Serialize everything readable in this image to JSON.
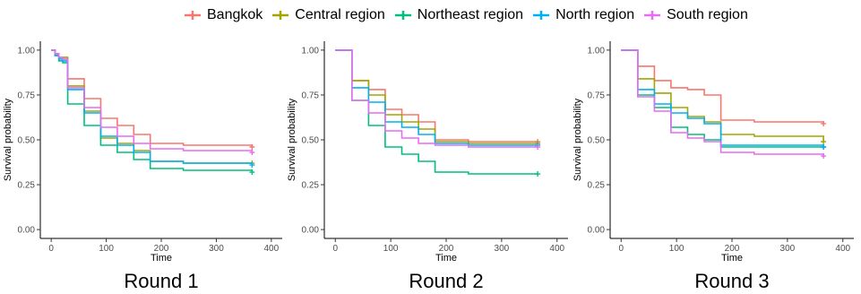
{
  "colors": {
    "Bangkok": "#F8766D",
    "Central region": "#A3A500",
    "Northeast region": "#00BF7D",
    "North region": "#00B0F6",
    "South region": "#E76BF3"
  },
  "legend": [
    "Bangkok",
    "Central region",
    "Northeast region",
    "North region",
    "South region"
  ],
  "chart_data": [
    {
      "type": "line",
      "subtype": "step",
      "caption": "Round 1",
      "xlabel": "Time",
      "ylabel": "Survival probability",
      "xlim": [
        0,
        400
      ],
      "ylim": [
        0,
        1
      ],
      "xticks": [
        "0",
        "100",
        "200",
        "300",
        "400"
      ],
      "yticks": [
        "0.00",
        "0.25",
        "0.50",
        "0.75",
        "1.00"
      ],
      "grid": false,
      "legend_position": "top",
      "series": [
        {
          "name": "Bangkok",
          "x": [
            0,
            7,
            14,
            21,
            30,
            60,
            90,
            120,
            150,
            180,
            240,
            365
          ],
          "y": [
            1.0,
            0.98,
            0.96,
            0.95,
            0.84,
            0.73,
            0.62,
            0.58,
            0.53,
            0.48,
            0.47,
            0.46
          ]
        },
        {
          "name": "Central region",
          "x": [
            0,
            7,
            14,
            21,
            30,
            60,
            90,
            120,
            150,
            180,
            240,
            365
          ],
          "y": [
            1.0,
            0.98,
            0.96,
            0.96,
            0.8,
            0.66,
            0.51,
            0.48,
            0.44,
            0.38,
            0.37,
            0.37
          ]
        },
        {
          "name": "Northeast region",
          "x": [
            0,
            7,
            14,
            21,
            30,
            60,
            90,
            120,
            150,
            180,
            240,
            365
          ],
          "y": [
            1.0,
            0.97,
            0.94,
            0.93,
            0.7,
            0.58,
            0.47,
            0.43,
            0.39,
            0.34,
            0.33,
            0.32
          ]
        },
        {
          "name": "North region",
          "x": [
            0,
            7,
            14,
            21,
            30,
            60,
            90,
            120,
            150,
            180,
            240,
            365
          ],
          "y": [
            1.0,
            0.97,
            0.95,
            0.94,
            0.78,
            0.65,
            0.52,
            0.47,
            0.43,
            0.38,
            0.37,
            0.36
          ]
        },
        {
          "name": "South region",
          "x": [
            0,
            7,
            14,
            21,
            30,
            60,
            90,
            120,
            150,
            180,
            240,
            365
          ],
          "y": [
            1.0,
            0.98,
            0.96,
            0.95,
            0.79,
            0.68,
            0.57,
            0.52,
            0.48,
            0.45,
            0.44,
            0.43
          ]
        }
      ]
    },
    {
      "type": "line",
      "subtype": "step",
      "caption": "Round 2",
      "xlabel": "Time",
      "ylabel": "Survival probability",
      "xlim": [
        0,
        400
      ],
      "ylim": [
        0,
        1
      ],
      "xticks": [
        "0",
        "100",
        "200",
        "300",
        "400"
      ],
      "yticks": [
        "0.00",
        "0.25",
        "0.50",
        "0.75",
        "1.00"
      ],
      "grid": false,
      "legend_position": "top",
      "series": [
        {
          "name": "Bangkok",
          "x": [
            0,
            30,
            60,
            90,
            120,
            150,
            180,
            240,
            365
          ],
          "y": [
            1.0,
            0.83,
            0.78,
            0.67,
            0.64,
            0.6,
            0.5,
            0.49,
            0.49
          ]
        },
        {
          "name": "Central region",
          "x": [
            0,
            30,
            60,
            90,
            120,
            150,
            180,
            240,
            365
          ],
          "y": [
            1.0,
            0.83,
            0.75,
            0.64,
            0.6,
            0.56,
            0.49,
            0.48,
            0.48
          ]
        },
        {
          "name": "Northeast region",
          "x": [
            0,
            30,
            60,
            90,
            120,
            150,
            180,
            240,
            365
          ],
          "y": [
            1.0,
            0.72,
            0.58,
            0.46,
            0.42,
            0.38,
            0.32,
            0.31,
            0.31
          ]
        },
        {
          "name": "North region",
          "x": [
            0,
            30,
            60,
            90,
            120,
            150,
            180,
            240,
            365
          ],
          "y": [
            1.0,
            0.79,
            0.71,
            0.6,
            0.57,
            0.53,
            0.48,
            0.47,
            0.47
          ]
        },
        {
          "name": "South region",
          "x": [
            0,
            30,
            60,
            90,
            120,
            150,
            180,
            240,
            365
          ],
          "y": [
            1.0,
            0.72,
            0.65,
            0.55,
            0.51,
            0.48,
            0.47,
            0.46,
            0.46
          ]
        }
      ]
    },
    {
      "type": "line",
      "subtype": "step",
      "caption": "Round 3",
      "xlabel": "Time",
      "ylabel": "Survival probability",
      "xlim": [
        0,
        400
      ],
      "ylim": [
        0,
        1
      ],
      "xticks": [
        "0",
        "100",
        "200",
        "300",
        "400"
      ],
      "yticks": [
        "0.00",
        "0.25",
        "0.50",
        "0.75",
        "1.00"
      ],
      "grid": false,
      "legend_position": "top",
      "series": [
        {
          "name": "Bangkok",
          "x": [
            0,
            30,
            60,
            90,
            120,
            150,
            180,
            240,
            365
          ],
          "y": [
            1.0,
            0.91,
            0.83,
            0.79,
            0.78,
            0.75,
            0.61,
            0.6,
            0.59
          ]
        },
        {
          "name": "Central region",
          "x": [
            0,
            30,
            60,
            90,
            120,
            150,
            180,
            240,
            365
          ],
          "y": [
            1.0,
            0.84,
            0.76,
            0.68,
            0.63,
            0.6,
            0.53,
            0.52,
            0.49
          ]
        },
        {
          "name": "Northeast region",
          "x": [
            0,
            30,
            60,
            90,
            120,
            150,
            180,
            240,
            365
          ],
          "y": [
            1.0,
            0.75,
            0.68,
            0.57,
            0.53,
            0.5,
            0.46,
            0.46,
            0.46
          ]
        },
        {
          "name": "North region",
          "x": [
            0,
            30,
            60,
            90,
            120,
            150,
            180,
            240,
            365
          ],
          "y": [
            1.0,
            0.78,
            0.7,
            0.65,
            0.62,
            0.59,
            0.47,
            0.47,
            0.46
          ]
        },
        {
          "name": "South region",
          "x": [
            0,
            30,
            60,
            90,
            120,
            150,
            180,
            240,
            365
          ],
          "y": [
            1.0,
            0.74,
            0.66,
            0.54,
            0.51,
            0.49,
            0.43,
            0.42,
            0.41
          ]
        }
      ]
    }
  ]
}
